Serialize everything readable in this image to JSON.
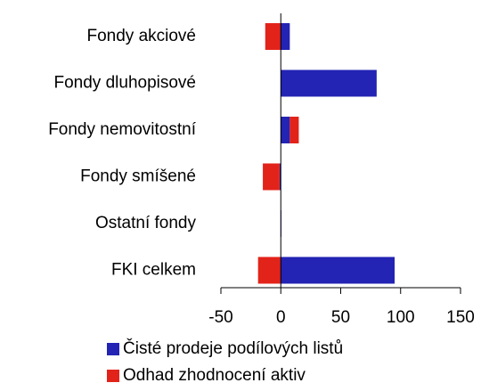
{
  "chart_data": {
    "type": "bar",
    "orientation": "horizontal",
    "stacked": true,
    "categories": [
      "Fondy akciové",
      "Fondy dluhopisové",
      "Fondy nemovitostní",
      "Fondy smíšené",
      "Ostatní fondy",
      "FKI celkem"
    ],
    "series": [
      {
        "name": "Čisté prodeje podílových listů",
        "color": "#2323b4",
        "values": [
          7.5,
          80,
          7.5,
          -1,
          0.5,
          95
        ]
      },
      {
        "name": "Odhad zhodnocení aktiv",
        "color": "#e2231a",
        "values": [
          -13,
          0,
          7.5,
          -14,
          0,
          -19
        ]
      }
    ],
    "xlim": [
      -50,
      150
    ],
    "xticks": [
      -50,
      0,
      50,
      100,
      150
    ],
    "grid": false,
    "legend": "bottom"
  }
}
